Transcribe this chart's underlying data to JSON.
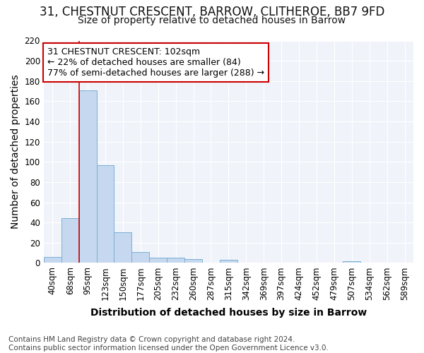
{
  "title_line1": "31, CHESTNUT CRESCENT, BARROW, CLITHEROE, BB7 9FD",
  "title_line2": "Size of property relative to detached houses in Barrow",
  "xlabel": "Distribution of detached houses by size in Barrow",
  "ylabel": "Number of detached properties",
  "footnote": "Contains HM Land Registry data © Crown copyright and database right 2024.\nContains public sector information licensed under the Open Government Licence v3.0.",
  "bin_labels": [
    "40sqm",
    "68sqm",
    "95sqm",
    "123sqm",
    "150sqm",
    "177sqm",
    "205sqm",
    "232sqm",
    "260sqm",
    "287sqm",
    "315sqm",
    "342sqm",
    "369sqm",
    "397sqm",
    "424sqm",
    "452sqm",
    "479sqm",
    "507sqm",
    "534sqm",
    "562sqm",
    "589sqm"
  ],
  "bar_values": [
    6,
    44,
    171,
    97,
    30,
    11,
    5,
    5,
    4,
    0,
    3,
    0,
    0,
    0,
    0,
    0,
    0,
    2,
    0,
    0,
    0
  ],
  "bar_color": "#c5d8ef",
  "bar_edge_color": "#7bafd4",
  "annotation_text_line1": "31 CHESTNUT CRESCENT: 102sqm",
  "annotation_text_line2": "← 22% of detached houses are smaller (84)",
  "annotation_text_line3": "77% of semi-detached houses are larger (288) →",
  "annotation_box_color": "white",
  "annotation_box_edge_color": "#cc0000",
  "vline_color": "#cc0000",
  "vline_x_index": 2,
  "ylim": [
    0,
    220
  ],
  "yticks": [
    0,
    20,
    40,
    60,
    80,
    100,
    120,
    140,
    160,
    180,
    200,
    220
  ],
  "bg_color": "#ffffff",
  "plot_bg_color": "#f0f4fa",
  "grid_color": "#ffffff",
  "title_fontsize": 12,
  "subtitle_fontsize": 10,
  "axis_label_fontsize": 10,
  "tick_fontsize": 8.5,
  "annotation_fontsize": 9,
  "footnote_fontsize": 7.5
}
